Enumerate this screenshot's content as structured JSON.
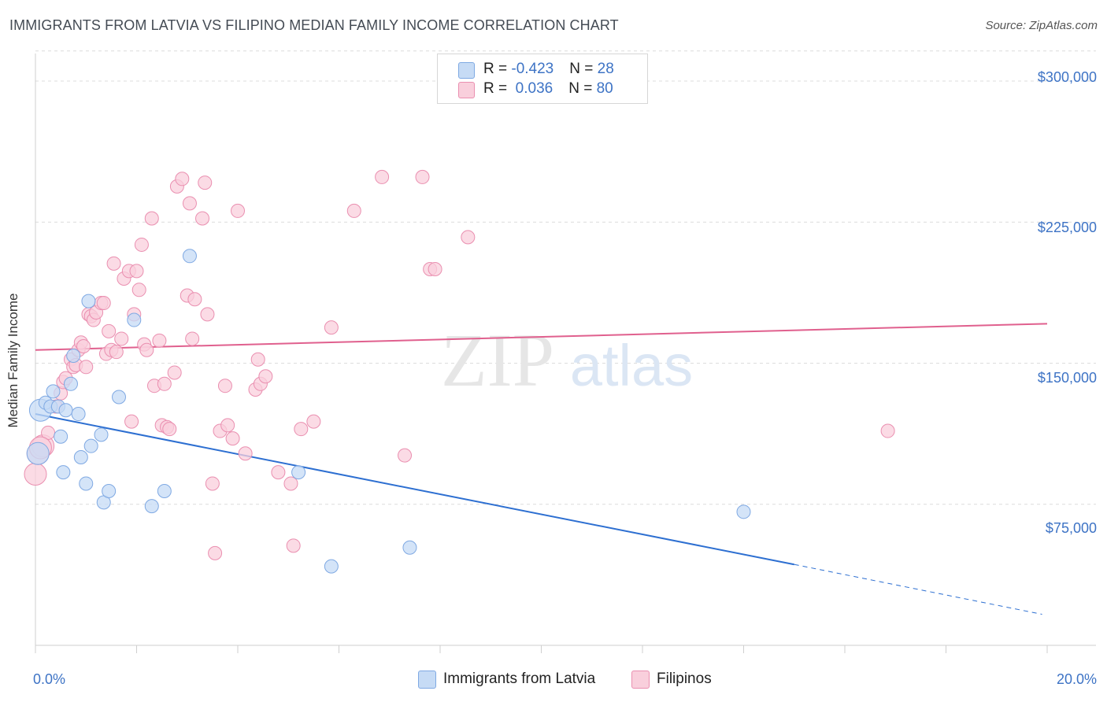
{
  "header": {
    "title": "IMMIGRANTS FROM LATVIA VS FILIPINO MEDIAN FAMILY INCOME CORRELATION CHART",
    "source": "Source: ZipAtlas.com"
  },
  "watermark": {
    "zip": "ZIP",
    "atlas": "atlas"
  },
  "legend": {
    "rows": [
      {
        "r_label": "R = ",
        "r_value": "-0.423",
        "n_label": "N = ",
        "n_value": "28",
        "color": "#a8c8f0"
      },
      {
        "r_label": "R = ",
        "r_value": " 0.036",
        "n_label": "N = ",
        "n_value": "80",
        "color": "#f7b6cb"
      }
    ]
  },
  "colors": {
    "latvia_fill": "#c6dbf5",
    "latvia_stroke": "#7fa9e3",
    "latvia_line": "#2d6fd1",
    "filipino_fill": "#f9cfdc",
    "filipino_stroke": "#ea8fb0",
    "filipino_line": "#e0608e",
    "grid": "#dcdcdc",
    "tick_text": "#3d73c5"
  },
  "chart_data": {
    "type": "scatter",
    "title": "IMMIGRANTS FROM LATVIA VS FILIPINO MEDIAN FAMILY INCOME CORRELATION CHART",
    "xlabel": "",
    "ylabel": "Median Family Income",
    "x_tick_labels": [
      "0.0%",
      "20.0%"
    ],
    "y_tick_labels": [
      "$75,000",
      "$150,000",
      "$225,000",
      "$300,000"
    ],
    "y_ticks": [
      75000,
      150000,
      225000,
      300000
    ],
    "xlim": [
      0,
      20
    ],
    "ylim": [
      0,
      318000
    ],
    "grid": true,
    "legend_position": "top-center",
    "series": [
      {
        "name": "Immigrants from Latvia",
        "points": [
          [
            0.05,
            102000
          ],
          [
            0.1,
            125000
          ],
          [
            0.2,
            129000
          ],
          [
            0.3,
            127000
          ],
          [
            0.35,
            135000
          ],
          [
            0.45,
            127000
          ],
          [
            0.5,
            111000
          ],
          [
            0.55,
            92000
          ],
          [
            0.6,
            125000
          ],
          [
            0.7,
            139000
          ],
          [
            0.75,
            154000
          ],
          [
            0.85,
            123000
          ],
          [
            0.9,
            100000
          ],
          [
            1.0,
            86000
          ],
          [
            1.1,
            106000
          ],
          [
            1.3,
            112000
          ],
          [
            1.35,
            76000
          ],
          [
            1.45,
            82000
          ],
          [
            1.65,
            132000
          ],
          [
            1.95,
            173000
          ],
          [
            1.05,
            183000
          ],
          [
            2.3,
            74000
          ],
          [
            2.55,
            82000
          ],
          [
            3.05,
            207000
          ],
          [
            5.2,
            92000
          ],
          [
            5.85,
            42000
          ],
          [
            7.4,
            52000
          ],
          [
            14.0,
            71000
          ]
        ],
        "trend": {
          "x_start": 0,
          "y_start": 123000,
          "x_solid_end": 15.0,
          "y_solid_end": 43000,
          "x_end": 19.9,
          "y_end": 16500
        }
      },
      {
        "name": "Filipinos",
        "points": [
          [
            0.0,
            91000
          ],
          [
            0.05,
            102000
          ],
          [
            0.15,
            106000
          ],
          [
            0.25,
            113000
          ],
          [
            0.4,
            127000
          ],
          [
            0.5,
            134000
          ],
          [
            0.55,
            140000
          ],
          [
            0.6,
            142000
          ],
          [
            0.7,
            152000
          ],
          [
            0.75,
            148000
          ],
          [
            0.8,
            149000
          ],
          [
            0.85,
            157000
          ],
          [
            0.9,
            161000
          ],
          [
            0.95,
            159000
          ],
          [
            1.0,
            148000
          ],
          [
            1.05,
            176000
          ],
          [
            1.1,
            175000
          ],
          [
            1.15,
            173000
          ],
          [
            1.2,
            177000
          ],
          [
            1.3,
            182000
          ],
          [
            1.35,
            182000
          ],
          [
            1.4,
            155000
          ],
          [
            1.45,
            167000
          ],
          [
            1.5,
            157000
          ],
          [
            1.55,
            203000
          ],
          [
            1.6,
            156000
          ],
          [
            1.7,
            163000
          ],
          [
            1.75,
            195000
          ],
          [
            1.85,
            199000
          ],
          [
            1.9,
            119000
          ],
          [
            1.95,
            176000
          ],
          [
            2.0,
            199000
          ],
          [
            2.05,
            189000
          ],
          [
            2.1,
            213000
          ],
          [
            2.15,
            160000
          ],
          [
            2.2,
            157000
          ],
          [
            2.3,
            227000
          ],
          [
            2.35,
            138000
          ],
          [
            2.45,
            162000
          ],
          [
            2.5,
            117000
          ],
          [
            2.55,
            139000
          ],
          [
            2.6,
            116000
          ],
          [
            2.65,
            115000
          ],
          [
            2.75,
            145000
          ],
          [
            2.8,
            244000
          ],
          [
            2.9,
            248000
          ],
          [
            3.0,
            186000
          ],
          [
            3.05,
            235000
          ],
          [
            3.1,
            163000
          ],
          [
            3.15,
            184000
          ],
          [
            3.3,
            227000
          ],
          [
            3.35,
            246000
          ],
          [
            3.4,
            176000
          ],
          [
            3.5,
            86000
          ],
          [
            3.55,
            49000
          ],
          [
            3.65,
            114000
          ],
          [
            3.75,
            138000
          ],
          [
            3.8,
            117000
          ],
          [
            3.9,
            110000
          ],
          [
            4.0,
            231000
          ],
          [
            4.15,
            102000
          ],
          [
            4.35,
            136000
          ],
          [
            4.4,
            152000
          ],
          [
            4.45,
            139000
          ],
          [
            4.55,
            143000
          ],
          [
            4.8,
            92000
          ],
          [
            5.05,
            86000
          ],
          [
            5.1,
            53000
          ],
          [
            5.25,
            115000
          ],
          [
            5.5,
            119000
          ],
          [
            5.85,
            169000
          ],
          [
            6.3,
            231000
          ],
          [
            6.85,
            249000
          ],
          [
            7.3,
            101000
          ],
          [
            7.65,
            249000
          ],
          [
            7.8,
            200000
          ],
          [
            7.9,
            200000
          ],
          [
            8.55,
            217000
          ],
          [
            0.1,
            105000
          ],
          [
            16.85,
            114000
          ]
        ],
        "trend": {
          "x_start": 0,
          "y_start": 157000,
          "x_end": 20,
          "y_end": 171000
        }
      }
    ]
  }
}
